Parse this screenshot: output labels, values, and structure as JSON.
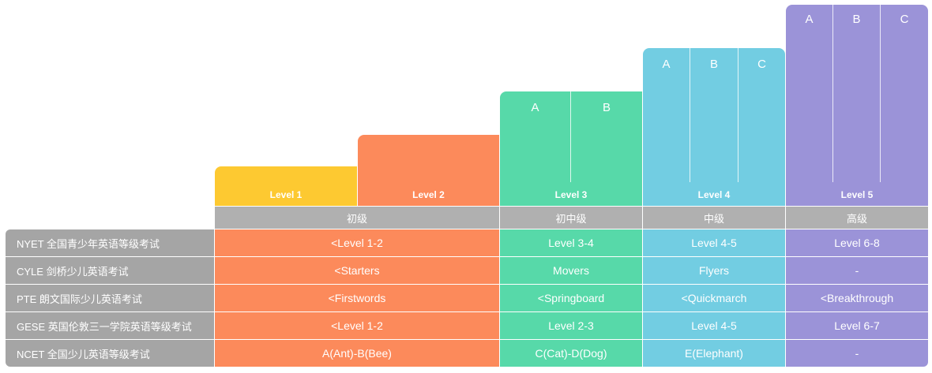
{
  "colors": {
    "yellow": "#fdc931",
    "orange": "#fc8a5b",
    "green": "#57d9a9",
    "blue": "#72cde2",
    "purple": "#9b93d8",
    "gray": "#a5a5a5"
  },
  "levels": [
    {
      "label": "Level 1",
      "subs": []
    },
    {
      "label": "Level 2",
      "subs": []
    },
    {
      "label": "Level 3",
      "subs": [
        "A",
        "B"
      ]
    },
    {
      "label": "Level 4",
      "subs": [
        "A",
        "B",
        "C"
      ]
    },
    {
      "label": "Level 5",
      "subs": [
        "A",
        "B",
        "C"
      ]
    }
  ],
  "tiers": [
    "初级",
    "初中级",
    "中级",
    "高级"
  ],
  "rows": [
    {
      "exam": "NYET 全国青少年英语等级考试",
      "cells": [
        "<Level 1-2",
        "Level 3-4",
        "Level 4-5",
        "Level 6-8"
      ]
    },
    {
      "exam": "CYLE 剑桥少儿英语考试",
      "cells": [
        "<Starters",
        "Movers",
        "Flyers",
        "-"
      ]
    },
    {
      "exam": "PTE 朗文国际少儿英语考试",
      "cells": [
        "<Firstwords",
        "<Springboard",
        "<Quickmarch",
        "<Breakthrough"
      ]
    },
    {
      "exam": "GESE 英国伦敦三一学院英语等级考试",
      "cells": [
        "<Level 1-2",
        "Level 2-3",
        "Level 4-5",
        "Level 6-7"
      ]
    },
    {
      "exam": "NCET 全国少儿英语等级考试",
      "cells": [
        "A(Ant)-B(Bee)",
        "C(Cat)-D(Dog)",
        "E(Elephant)",
        "-"
      ]
    }
  ]
}
